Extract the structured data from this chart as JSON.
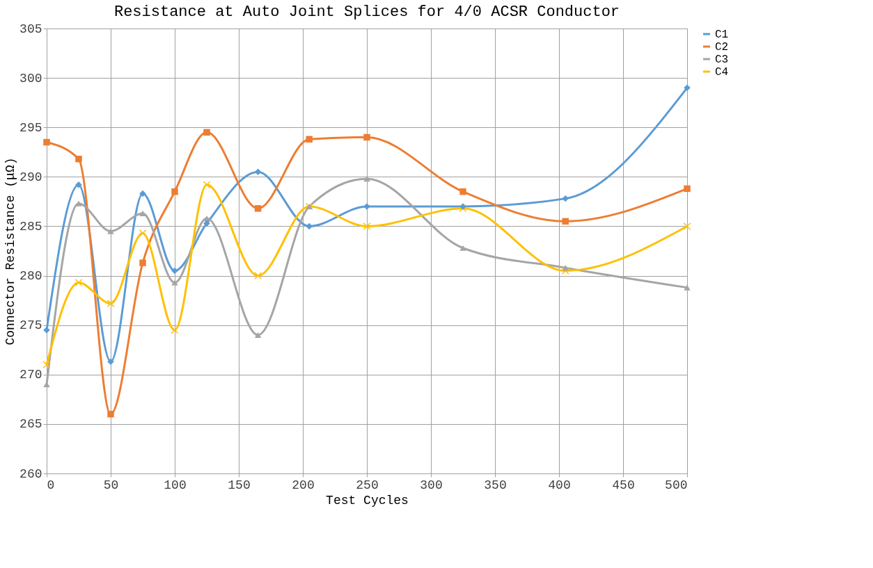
{
  "chart_data": {
    "type": "line",
    "title": "Resistance at Auto Joint Splices for 4/0 ACSR Conductor",
    "xlabel": "Test Cycles",
    "ylabel": "Connector Resistance (μΩ)",
    "x": [
      0,
      25,
      50,
      75,
      100,
      125,
      165,
      205,
      250,
      325,
      405,
      500
    ],
    "xlim": [
      0,
      500
    ],
    "xticks": [
      0,
      50,
      100,
      150,
      200,
      250,
      300,
      350,
      400,
      450,
      500
    ],
    "ylim": [
      260,
      305
    ],
    "yticks": [
      260,
      265,
      270,
      275,
      280,
      285,
      290,
      295,
      300,
      305
    ],
    "grid": true,
    "legend": "right",
    "line_style": "solid",
    "series": [
      {
        "name": "C1",
        "color": "#5b9bd5",
        "marker": "diamond",
        "values": [
          274.5,
          289.2,
          271.3,
          288.3,
          280.5,
          285.3,
          290.5,
          285,
          287,
          287,
          287.8,
          299
        ]
      },
      {
        "name": "C2",
        "color": "#ed7d31",
        "marker": "square",
        "values": [
          293.5,
          291.8,
          266,
          281.3,
          288.5,
          294.5,
          286.8,
          293.8,
          294,
          288.5,
          285.5,
          288.8
        ]
      },
      {
        "name": "C3",
        "color": "#a5a5a5",
        "marker": "triangle",
        "values": [
          269,
          287.3,
          284.5,
          286.3,
          279.3,
          285.8,
          274,
          287,
          289.8,
          282.8,
          280.8,
          278.8
        ]
      },
      {
        "name": "C4",
        "color": "#ffc000",
        "marker": "cross",
        "values": [
          271,
          279.3,
          277.2,
          284.3,
          274.5,
          289.2,
          280,
          287,
          285,
          286.8,
          280.5,
          285
        ]
      }
    ]
  }
}
